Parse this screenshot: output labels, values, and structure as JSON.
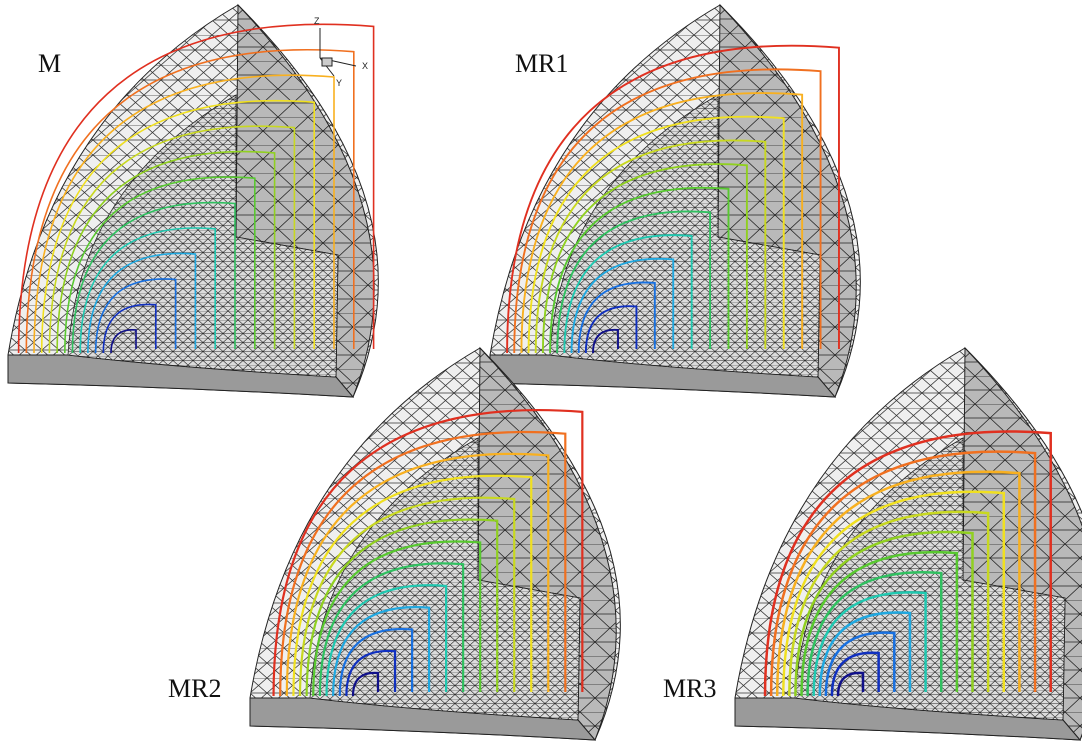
{
  "panels": [
    {
      "label": "M"
    },
    {
      "label": "MR1"
    },
    {
      "label": "MR2"
    },
    {
      "label": "MR3"
    }
  ],
  "axes": {
    "z": "Z",
    "x": "X",
    "y": "Y"
  }
}
